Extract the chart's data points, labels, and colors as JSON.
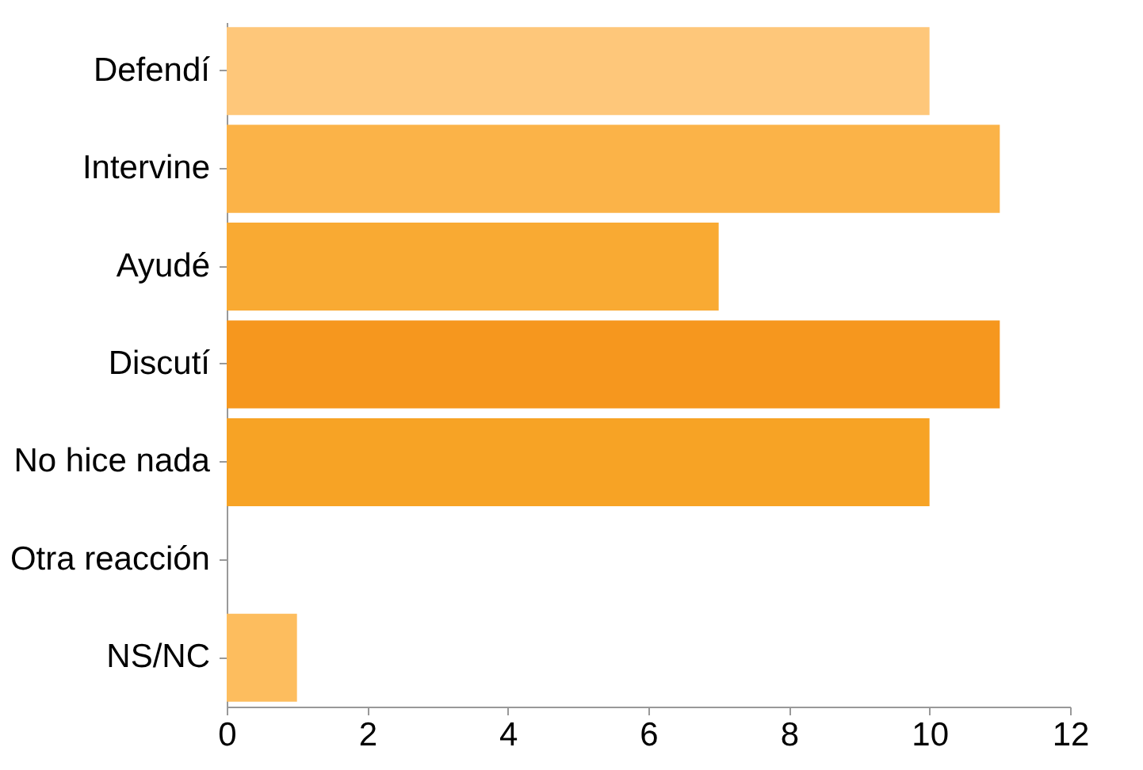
{
  "chart_data": {
    "type": "bar",
    "orientation": "horizontal",
    "categories": [
      "Defendí",
      "Intervine",
      "Ayudé",
      "Discutí",
      "No hice nada",
      "Otra reacción",
      "NS/NC"
    ],
    "values": [
      10,
      11,
      7,
      11,
      10,
      0,
      1
    ],
    "colors": [
      "#fec77a",
      "#fbb348",
      "#f9aa33",
      "#f6971e",
      "#f7a325",
      "#f9b040",
      "#fdbd5e"
    ],
    "xlim": [
      0,
      12
    ],
    "xticks": [
      0,
      2,
      4,
      6,
      8,
      10,
      12
    ],
    "grid": false
  }
}
